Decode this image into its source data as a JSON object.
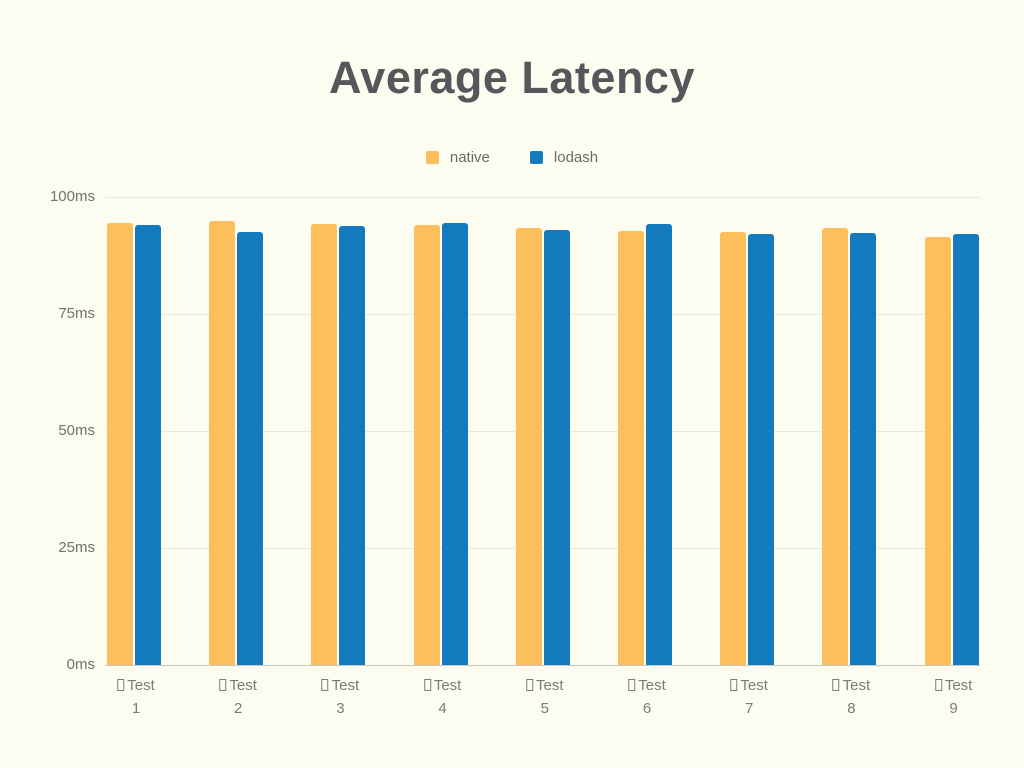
{
  "title": "Average Latency",
  "legend": {
    "items": [
      {
        "label": "native",
        "color": "#FDBE5C"
      },
      {
        "label": "lodash",
        "color": "#137ABD"
      }
    ]
  },
  "chart_data": {
    "type": "bar",
    "title": "Average Latency",
    "categories": [
      "Test 1",
      "Test 2",
      "Test 3",
      "Test 4",
      "Test 5",
      "Test 6",
      "Test 7",
      "Test 8",
      "Test 9"
    ],
    "category_prefix_glyph": "□",
    "series": [
      {
        "name": "native",
        "color": "#FDBE5C",
        "values": [
          94.4,
          94.9,
          94.2,
          94.0,
          93.4,
          92.7,
          92.6,
          93.3,
          91.5
        ]
      },
      {
        "name": "lodash",
        "color": "#137ABD",
        "values": [
          94.0,
          92.5,
          93.8,
          94.4,
          93.0,
          94.2,
          92.1,
          92.3,
          92.2
        ]
      }
    ],
    "y_ticks": [
      {
        "value": 0,
        "label": "0ms"
      },
      {
        "value": 25,
        "label": "25ms"
      },
      {
        "value": 50,
        "label": "50ms"
      },
      {
        "value": 75,
        "label": "75ms"
      },
      {
        "value": 100,
        "label": "100ms"
      }
    ],
    "ylim": [
      0,
      100
    ],
    "xlabel": "",
    "ylabel": "",
    "grid": "horizontal",
    "legend_position": "top"
  },
  "colors": {
    "background": "#FCFDF0",
    "title_text": "#56575A",
    "gridline": "#E7E8DE",
    "axis_line": "#C6C7BE",
    "y_tick_text": "#71726B",
    "category_text": "#7B7C75",
    "native_bar": "#FDBE5C",
    "lodash_bar": "#137ABD"
  }
}
